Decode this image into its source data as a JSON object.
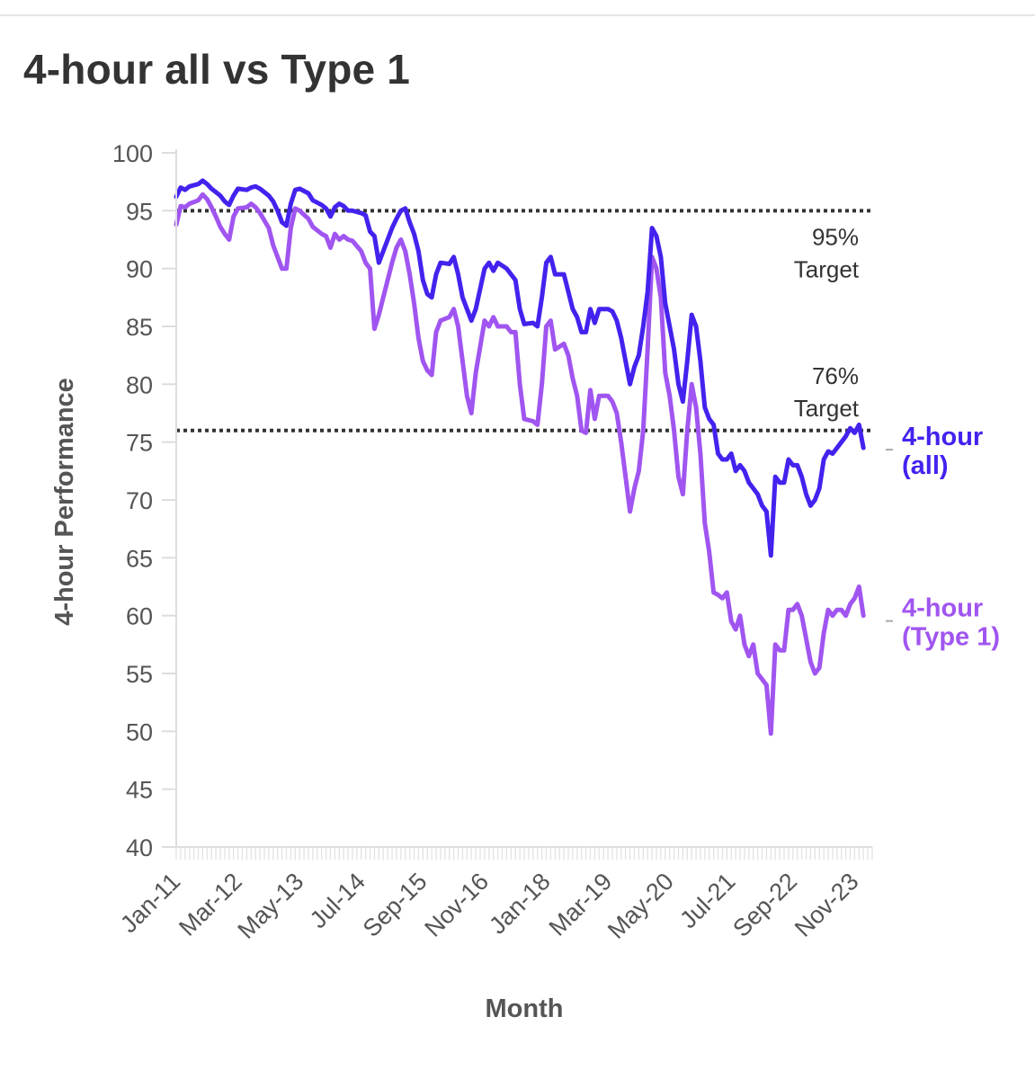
{
  "title": "4-hour all vs Type 1",
  "chart_data": {
    "type": "line",
    "title": "4-hour all vs Type 1",
    "xlabel": "Month",
    "ylabel": "4-hour Performance",
    "ylim": [
      40,
      100
    ],
    "yticks": [
      40,
      45,
      50,
      55,
      60,
      65,
      70,
      75,
      80,
      85,
      90,
      95,
      100
    ],
    "x_start": "Jan-11",
    "x_end": "Mar-24",
    "x_tick_labels": [
      "Jan-11",
      "Mar-12",
      "May-13",
      "Jul-14",
      "Sep-15",
      "Nov-16",
      "Jan-18",
      "Mar-19",
      "May-20",
      "Jul-21",
      "Sep-22",
      "Nov-23"
    ],
    "x_tick_step_months": 14,
    "grid": false,
    "reference_lines": [
      {
        "value": 95,
        "label_line1": "95%",
        "label_line2": "Target"
      },
      {
        "value": 76,
        "label_line1": "76%",
        "label_line2": "Target"
      }
    ],
    "series": [
      {
        "name": "4-hour (all)",
        "label_line1": "4-hour",
        "label_line2": "(all)",
        "color": "#4422ee",
        "points": [
          [
            "Jan-11",
            96.2
          ],
          [
            "Feb-11",
            97.0
          ],
          [
            "Mar-11",
            96.8
          ],
          [
            "Apr-11",
            97.1
          ],
          [
            "Jun-11",
            97.3
          ],
          [
            "Jul-11",
            97.6
          ],
          [
            "Aug-11",
            97.3
          ],
          [
            "Sep-11",
            96.9
          ],
          [
            "Oct-11",
            96.6
          ],
          [
            "Nov-11",
            96.3
          ],
          [
            "Dec-11",
            95.8
          ],
          [
            "Jan-12",
            95.5
          ],
          [
            "Feb-12",
            96.3
          ],
          [
            "Mar-12",
            96.9
          ],
          [
            "May-12",
            96.8
          ],
          [
            "Jun-12",
            97.0
          ],
          [
            "Jul-12",
            97.1
          ],
          [
            "Aug-12",
            96.9
          ],
          [
            "Oct-12",
            96.3
          ],
          [
            "Nov-12",
            95.8
          ],
          [
            "Dec-12",
            95.0
          ],
          [
            "Jan-13",
            94.0
          ],
          [
            "Feb-13",
            93.7
          ],
          [
            "Mar-13",
            95.6
          ],
          [
            "Apr-13",
            96.8
          ],
          [
            "May-13",
            96.9
          ],
          [
            "Jul-13",
            96.5
          ],
          [
            "Aug-13",
            95.9
          ],
          [
            "Sep-13",
            95.7
          ],
          [
            "Oct-13",
            95.5
          ],
          [
            "Nov-13",
            95.2
          ],
          [
            "Dec-13",
            94.5
          ],
          [
            "Jan-14",
            95.3
          ],
          [
            "Feb-14",
            95.6
          ],
          [
            "Mar-14",
            95.4
          ],
          [
            "Apr-14",
            95.0
          ],
          [
            "May-14",
            95.0
          ],
          [
            "Jul-14",
            94.8
          ],
          [
            "Aug-14",
            94.6
          ],
          [
            "Sep-14",
            93.2
          ],
          [
            "Oct-14",
            92.8
          ],
          [
            "Nov-14",
            90.5
          ],
          [
            "Dec-14",
            91.5
          ],
          [
            "Jan-15",
            92.5
          ],
          [
            "Feb-15",
            93.5
          ],
          [
            "Mar-15",
            94.3
          ],
          [
            "Apr-15",
            95.0
          ],
          [
            "May-15",
            95.2
          ],
          [
            "Jun-15",
            94.0
          ],
          [
            "Jul-15",
            93.0
          ],
          [
            "Aug-15",
            91.5
          ],
          [
            "Sep-15",
            89.0
          ],
          [
            "Oct-15",
            87.8
          ],
          [
            "Nov-15",
            87.5
          ],
          [
            "Dec-15",
            89.5
          ],
          [
            "Jan-16",
            90.5
          ],
          [
            "Mar-16",
            90.4
          ],
          [
            "Apr-16",
            91.0
          ],
          [
            "May-16",
            89.5
          ],
          [
            "Jun-16",
            87.5
          ],
          [
            "Jul-16",
            86.5
          ],
          [
            "Aug-16",
            85.5
          ],
          [
            "Sep-16",
            86.5
          ],
          [
            "Nov-16",
            90.0
          ],
          [
            "Dec-16",
            90.5
          ],
          [
            "Jan-17",
            89.8
          ],
          [
            "Feb-17",
            90.5
          ],
          [
            "Apr-17",
            90.0
          ],
          [
            "May-17",
            89.5
          ],
          [
            "Jun-17",
            89.0
          ],
          [
            "Jul-17",
            86.5
          ],
          [
            "Aug-17",
            85.2
          ],
          [
            "Oct-17",
            85.3
          ],
          [
            "Nov-17",
            85.0
          ],
          [
            "Dec-17",
            87.5
          ],
          [
            "Jan-18",
            90.5
          ],
          [
            "Feb-18",
            91.0
          ],
          [
            "Mar-18",
            89.5
          ],
          [
            "May-18",
            89.5
          ],
          [
            "Jun-18",
            88.0
          ],
          [
            "Jul-18",
            86.5
          ],
          [
            "Aug-18",
            85.8
          ],
          [
            "Sep-18",
            84.5
          ],
          [
            "Oct-18",
            84.5
          ],
          [
            "Nov-18",
            86.5
          ],
          [
            "Dec-18",
            85.3
          ],
          [
            "Jan-19",
            86.5
          ],
          [
            "Mar-19",
            86.5
          ],
          [
            "Apr-19",
            86.3
          ],
          [
            "May-19",
            85.5
          ],
          [
            "Jun-19",
            84.0
          ],
          [
            "Jul-19",
            82.0
          ],
          [
            "Aug-19",
            80.0
          ],
          [
            "Sep-19",
            81.5
          ],
          [
            "Oct-19",
            82.5
          ],
          [
            "Nov-19",
            85.0
          ],
          [
            "Dec-19",
            88.0
          ],
          [
            "Jan-20",
            93.5
          ],
          [
            "Feb-20",
            92.8
          ],
          [
            "Mar-20",
            91.0
          ],
          [
            "Apr-20",
            87.0
          ],
          [
            "May-20",
            85.0
          ],
          [
            "Jun-20",
            83.0
          ],
          [
            "Jul-20",
            80.0
          ],
          [
            "Aug-20",
            78.5
          ],
          [
            "Sep-20",
            82.0
          ],
          [
            "Oct-20",
            86.0
          ],
          [
            "Nov-20",
            85.0
          ],
          [
            "Dec-20",
            82.0
          ],
          [
            "Jan-21",
            78.0
          ],
          [
            "Feb-21",
            77.0
          ],
          [
            "Mar-21",
            76.5
          ],
          [
            "Apr-21",
            74.0
          ],
          [
            "May-21",
            73.5
          ],
          [
            "Jun-21",
            73.5
          ],
          [
            "Jul-21",
            74.0
          ],
          [
            "Aug-21",
            72.5
          ],
          [
            "Sep-21",
            73.0
          ],
          [
            "Oct-21",
            72.5
          ],
          [
            "Nov-21",
            71.5
          ],
          [
            "Dec-21",
            71.0
          ],
          [
            "Jan-22",
            70.5
          ],
          [
            "Feb-22",
            69.5
          ],
          [
            "Mar-22",
            69.0
          ],
          [
            "Apr-22",
            65.2
          ],
          [
            "May-22",
            72.0
          ],
          [
            "Jun-22",
            71.5
          ],
          [
            "Jul-22",
            71.5
          ],
          [
            "Aug-22",
            73.5
          ],
          [
            "Sep-22",
            73.0
          ],
          [
            "Oct-22",
            73.0
          ],
          [
            "Nov-22",
            72.0
          ],
          [
            "Dec-22",
            70.5
          ],
          [
            "Jan-23",
            69.5
          ],
          [
            "Feb-23",
            70.0
          ],
          [
            "Mar-23",
            71.0
          ],
          [
            "Apr-23",
            73.5
          ],
          [
            "May-23",
            74.2
          ],
          [
            "Jun-23",
            74.0
          ],
          [
            "Jul-23",
            74.5
          ],
          [
            "Aug-23",
            75.0
          ],
          [
            "Sep-23",
            75.5
          ],
          [
            "Oct-23",
            76.2
          ],
          [
            "Nov-23",
            75.8
          ],
          [
            "Dec-23",
            76.5
          ],
          [
            "Jan-24",
            74.5
          ]
        ]
      },
      {
        "name": "4-hour (Type 1)",
        "label_line1": "4-hour",
        "label_line2": "(Type 1)",
        "color": "#a055f0",
        "points": [
          [
            "Jan-11",
            93.8
          ],
          [
            "Feb-11",
            95.4
          ],
          [
            "Mar-11",
            95.3
          ],
          [
            "Apr-11",
            95.6
          ],
          [
            "Jun-11",
            95.9
          ],
          [
            "Jul-11",
            96.4
          ],
          [
            "Aug-11",
            96.0
          ],
          [
            "Sep-11",
            95.3
          ],
          [
            "Oct-11",
            94.5
          ],
          [
            "Nov-11",
            93.6
          ],
          [
            "Dec-11",
            93.0
          ],
          [
            "Jan-12",
            92.5
          ],
          [
            "Feb-12",
            94.5
          ],
          [
            "Mar-12",
            95.2
          ],
          [
            "May-12",
            95.3
          ],
          [
            "Jun-12",
            95.6
          ],
          [
            "Jul-12",
            95.3
          ],
          [
            "Aug-12",
            94.8
          ],
          [
            "Oct-12",
            93.5
          ],
          [
            "Nov-12",
            92.0
          ],
          [
            "Dec-12",
            91.0
          ],
          [
            "Jan-13",
            90.0
          ],
          [
            "Feb-13",
            90.0
          ],
          [
            "Mar-13",
            93.5
          ],
          [
            "Apr-13",
            95.2
          ],
          [
            "May-13",
            95.0
          ],
          [
            "Jul-13",
            94.3
          ],
          [
            "Aug-13",
            93.6
          ],
          [
            "Sep-13",
            93.3
          ],
          [
            "Oct-13",
            93.0
          ],
          [
            "Nov-13",
            92.8
          ],
          [
            "Dec-13",
            91.8
          ],
          [
            "Jan-14",
            93.0
          ],
          [
            "Feb-14",
            92.5
          ],
          [
            "Mar-14",
            92.8
          ],
          [
            "Apr-14",
            92.5
          ],
          [
            "May-14",
            92.4
          ],
          [
            "Jul-14",
            91.5
          ],
          [
            "Aug-14",
            90.5
          ],
          [
            "Sep-14",
            90.0
          ],
          [
            "Oct-14",
            84.8
          ],
          [
            "Nov-14",
            86.0
          ],
          [
            "Dec-14",
            87.5
          ],
          [
            "Jan-15",
            89.0
          ],
          [
            "Feb-15",
            90.5
          ],
          [
            "Mar-15",
            91.8
          ],
          [
            "Apr-15",
            92.5
          ],
          [
            "May-15",
            91.5
          ],
          [
            "Jun-15",
            89.5
          ],
          [
            "Jul-15",
            87.0
          ],
          [
            "Aug-15",
            84.0
          ],
          [
            "Sep-15",
            82.0
          ],
          [
            "Oct-15",
            81.2
          ],
          [
            "Nov-15",
            80.8
          ],
          [
            "Dec-15",
            84.5
          ],
          [
            "Jan-16",
            85.5
          ],
          [
            "Mar-16",
            85.8
          ],
          [
            "Apr-16",
            86.5
          ],
          [
            "May-16",
            85.0
          ],
          [
            "Jun-16",
            82.0
          ],
          [
            "Jul-16",
            79.0
          ],
          [
            "Aug-16",
            77.5
          ],
          [
            "Sep-16",
            81.0
          ],
          [
            "Nov-16",
            85.5
          ],
          [
            "Dec-16",
            85.0
          ],
          [
            "Jan-17",
            85.8
          ],
          [
            "Feb-17",
            85.0
          ],
          [
            "Apr-17",
            85.0
          ],
          [
            "May-17",
            84.5
          ],
          [
            "Jun-17",
            84.5
          ],
          [
            "Jul-17",
            80.0
          ],
          [
            "Aug-17",
            77.0
          ],
          [
            "Oct-17",
            76.8
          ],
          [
            "Nov-17",
            76.5
          ],
          [
            "Dec-17",
            80.0
          ],
          [
            "Jan-18",
            85.0
          ],
          [
            "Feb-18",
            85.5
          ],
          [
            "Mar-18",
            83.0
          ],
          [
            "May-18",
            83.5
          ],
          [
            "Jun-18",
            82.5
          ],
          [
            "Jul-18",
            80.5
          ],
          [
            "Aug-18",
            79.0
          ],
          [
            "Sep-18",
            76.0
          ],
          [
            "Oct-18",
            75.8
          ],
          [
            "Nov-18",
            79.5
          ],
          [
            "Dec-18",
            77.0
          ],
          [
            "Jan-19",
            79.0
          ],
          [
            "Mar-19",
            79.0
          ],
          [
            "Apr-19",
            78.5
          ],
          [
            "May-19",
            77.5
          ],
          [
            "Jun-19",
            75.0
          ],
          [
            "Jul-19",
            72.0
          ],
          [
            "Aug-19",
            69.0
          ],
          [
            "Sep-19",
            71.0
          ],
          [
            "Oct-19",
            72.5
          ],
          [
            "Nov-19",
            76.0
          ],
          [
            "Dec-19",
            83.0
          ],
          [
            "Jan-20",
            91.0
          ],
          [
            "Feb-20",
            90.0
          ],
          [
            "Mar-20",
            87.5
          ],
          [
            "Apr-20",
            81.0
          ],
          [
            "May-20",
            79.0
          ],
          [
            "Jun-20",
            76.0
          ],
          [
            "Jul-20",
            72.0
          ],
          [
            "Aug-20",
            70.5
          ],
          [
            "Sep-20",
            76.0
          ],
          [
            "Oct-20",
            80.0
          ],
          [
            "Nov-20",
            78.0
          ],
          [
            "Dec-20",
            74.0
          ],
          [
            "Jan-21",
            68.0
          ],
          [
            "Feb-21",
            65.5
          ],
          [
            "Mar-21",
            62.0
          ],
          [
            "Apr-21",
            61.8
          ],
          [
            "May-21",
            61.5
          ],
          [
            "Jun-21",
            62.0
          ],
          [
            "Jul-21",
            59.5
          ],
          [
            "Aug-21",
            58.8
          ],
          [
            "Sep-21",
            60.0
          ],
          [
            "Oct-21",
            57.5
          ],
          [
            "Nov-21",
            56.5
          ],
          [
            "Dec-21",
            57.5
          ],
          [
            "Jan-22",
            55.0
          ],
          [
            "Feb-22",
            54.5
          ],
          [
            "Mar-22",
            54.0
          ],
          [
            "Apr-22",
            49.8
          ],
          [
            "May-22",
            57.5
          ],
          [
            "Jun-22",
            57.0
          ],
          [
            "Jul-22",
            57.0
          ],
          [
            "Aug-22",
            60.5
          ],
          [
            "Sep-22",
            60.5
          ],
          [
            "Oct-22",
            61.0
          ],
          [
            "Nov-22",
            60.0
          ],
          [
            "Dec-22",
            58.0
          ],
          [
            "Jan-23",
            56.0
          ],
          [
            "Feb-23",
            55.0
          ],
          [
            "Mar-23",
            55.5
          ],
          [
            "Apr-23",
            58.5
          ],
          [
            "May-23",
            60.5
          ],
          [
            "Jun-23",
            60.0
          ],
          [
            "Jul-23",
            60.5
          ],
          [
            "Aug-23",
            60.5
          ],
          [
            "Sep-23",
            60.0
          ],
          [
            "Oct-23",
            61.0
          ],
          [
            "Nov-23",
            61.5
          ],
          [
            "Dec-23",
            62.5
          ],
          [
            "Jan-24",
            60.0
          ]
        ]
      }
    ]
  }
}
